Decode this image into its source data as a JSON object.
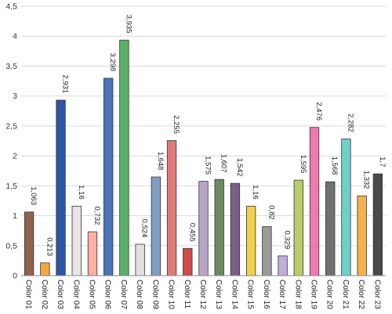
{
  "chart_data": {
    "type": "bar",
    "title": "",
    "xlabel": "",
    "ylabel": "",
    "ylim": [
      0,
      4.5
    ],
    "yticks": [
      0,
      0.5,
      1,
      1.5,
      2,
      2.5,
      3,
      3.5,
      4,
      4.5
    ],
    "ytick_labels": [
      "0",
      "0,5",
      "1",
      "1,5",
      "2",
      "2,5",
      "3",
      "3,5",
      "4",
      "4,5"
    ],
    "grid": true,
    "legend": "none",
    "categories": [
      "Color 01",
      "Color 02",
      "Color 03",
      "Color 04",
      "Color 05",
      "Color 06",
      "Color 07",
      "Color 08",
      "Color 09",
      "Color 10",
      "Color 11",
      "Color 12",
      "Color 13",
      "Color 14",
      "Color 15",
      "Color 16",
      "Color 17",
      "Color 18",
      "Color 19",
      "Color 20",
      "Color 21",
      "Color 22",
      "Color 23"
    ],
    "values": [
      1.063,
      0.213,
      2.931,
      1.16,
      0.732,
      3.298,
      3.935,
      0.524,
      1.648,
      2.255,
      0.455,
      1.575,
      1.607,
      1.542,
      1.16,
      0.82,
      0.329,
      1.595,
      2.476,
      1.568,
      2.282,
      1.332,
      1.7
    ],
    "value_labels": [
      "1,063",
      "0,213",
      "2,931",
      "1,16",
      "0,732",
      "3,298",
      "3,935",
      "0,524",
      "1,648",
      "2,255",
      "0,455",
      "1,575",
      "1,607",
      "1,542",
      "1,16",
      "0,82",
      "0,329",
      "1,595",
      "2,476",
      "1,568",
      "2,282",
      "1,332",
      "1,7"
    ],
    "colors": [
      "#8c6450",
      "#f2a83e",
      "#2f56a5",
      "#e6e6e6",
      "#ffb0a0",
      "#4a74b8",
      "#5bb16a",
      "#e0e0e0",
      "#7fa0c0",
      "#e07a78",
      "#d04a4a",
      "#b8a6c8",
      "#6c8a60",
      "#7a5e8a",
      "#f3d04a",
      "#9a9a9a",
      "#c0b0d8",
      "#b8cc6a",
      "#f07ab0",
      "#707070",
      "#70d0c8",
      "#f4b24a",
      "#4a4a4a"
    ]
  }
}
